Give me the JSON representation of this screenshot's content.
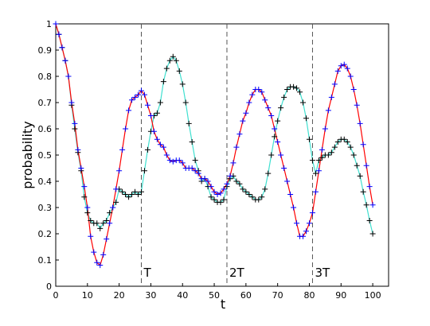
{
  "chart_data": {
    "type": "line",
    "xlabel": "t",
    "ylabel": "probability",
    "x": [
      0,
      1,
      2,
      3,
      4,
      5,
      6,
      7,
      8,
      9,
      10,
      11,
      12,
      13,
      14,
      15,
      16,
      17,
      18,
      19,
      20,
      21,
      22,
      23,
      24,
      25,
      26,
      27,
      28,
      29,
      30,
      31,
      32,
      33,
      34,
      35,
      36,
      37,
      38,
      39,
      40,
      41,
      42,
      43,
      44,
      45,
      46,
      47,
      48,
      49,
      50,
      51,
      52,
      53,
      54,
      55,
      56,
      57,
      58,
      59,
      60,
      61,
      62,
      63,
      64,
      65,
      66,
      67,
      68,
      69,
      70,
      71,
      72,
      73,
      74,
      75,
      76,
      77,
      78,
      79,
      80,
      81,
      82,
      83,
      84,
      85,
      86,
      87,
      88,
      89,
      90,
      91,
      92,
      93,
      94,
      95,
      96,
      97,
      98,
      99,
      100
    ],
    "series": [
      {
        "color": "#40e0d0",
        "marker_color": "#000000",
        "values": [
          1.0,
          0.96,
          0.91,
          0.86,
          0.8,
          0.69,
          0.6,
          0.51,
          0.44,
          0.34,
          0.28,
          0.25,
          0.24,
          0.24,
          0.22,
          0.24,
          0.25,
          0.28,
          0.3,
          0.32,
          0.37,
          0.36,
          0.35,
          0.34,
          0.35,
          0.36,
          0.35,
          0.36,
          0.44,
          0.52,
          0.59,
          0.65,
          0.66,
          0.7,
          0.78,
          0.83,
          0.86,
          0.875,
          0.86,
          0.82,
          0.77,
          0.7,
          0.62,
          0.55,
          0.48,
          0.44,
          0.4,
          0.41,
          0.38,
          0.34,
          0.33,
          0.32,
          0.32,
          0.33,
          0.38,
          0.41,
          0.42,
          0.4,
          0.39,
          0.37,
          0.36,
          0.35,
          0.34,
          0.33,
          0.33,
          0.34,
          0.37,
          0.43,
          0.5,
          0.57,
          0.63,
          0.68,
          0.72,
          0.75,
          0.76,
          0.76,
          0.755,
          0.74,
          0.7,
          0.64,
          0.56,
          0.48,
          0.43,
          0.48,
          0.49,
          0.5,
          0.5,
          0.51,
          0.53,
          0.55,
          0.56,
          0.56,
          0.55,
          0.53,
          0.5,
          0.46,
          0.42,
          0.36,
          0.31,
          0.25,
          0.2
        ]
      },
      {
        "color": "#ff0000",
        "marker_color": "#0000ff",
        "values": [
          1.0,
          0.96,
          0.91,
          0.86,
          0.8,
          0.7,
          0.62,
          0.52,
          0.45,
          0.38,
          0.3,
          0.19,
          0.13,
          0.09,
          0.08,
          0.12,
          0.18,
          0.24,
          0.3,
          0.37,
          0.44,
          0.52,
          0.6,
          0.67,
          0.71,
          0.72,
          0.73,
          0.745,
          0.73,
          0.69,
          0.65,
          0.59,
          0.56,
          0.54,
          0.53,
          0.5,
          0.48,
          0.475,
          0.48,
          0.48,
          0.47,
          0.45,
          0.45,
          0.45,
          0.44,
          0.43,
          0.41,
          0.41,
          0.4,
          0.38,
          0.36,
          0.35,
          0.355,
          0.37,
          0.39,
          0.42,
          0.47,
          0.53,
          0.58,
          0.63,
          0.66,
          0.7,
          0.73,
          0.75,
          0.75,
          0.74,
          0.71,
          0.68,
          0.65,
          0.6,
          0.55,
          0.5,
          0.45,
          0.4,
          0.35,
          0.3,
          0.24,
          0.19,
          0.19,
          0.21,
          0.24,
          0.28,
          0.36,
          0.44,
          0.52,
          0.6,
          0.67,
          0.72,
          0.77,
          0.82,
          0.84,
          0.845,
          0.83,
          0.8,
          0.75,
          0.69,
          0.62,
          0.54,
          0.46,
          0.38,
          0.31
        ]
      }
    ],
    "vlines": [
      {
        "x": 27,
        "label": "T"
      },
      {
        "x": 54,
        "label": "2T"
      },
      {
        "x": 81,
        "label": "3T"
      }
    ],
    "xlim": [
      0,
      105
    ],
    "ylim": [
      0,
      1
    ],
    "xticks": [
      0,
      10,
      20,
      30,
      40,
      50,
      60,
      70,
      80,
      90,
      100
    ],
    "yticks": [
      0,
      0.1,
      0.2,
      0.3,
      0.4,
      0.5,
      0.6,
      0.7,
      0.8,
      0.9,
      1
    ]
  }
}
